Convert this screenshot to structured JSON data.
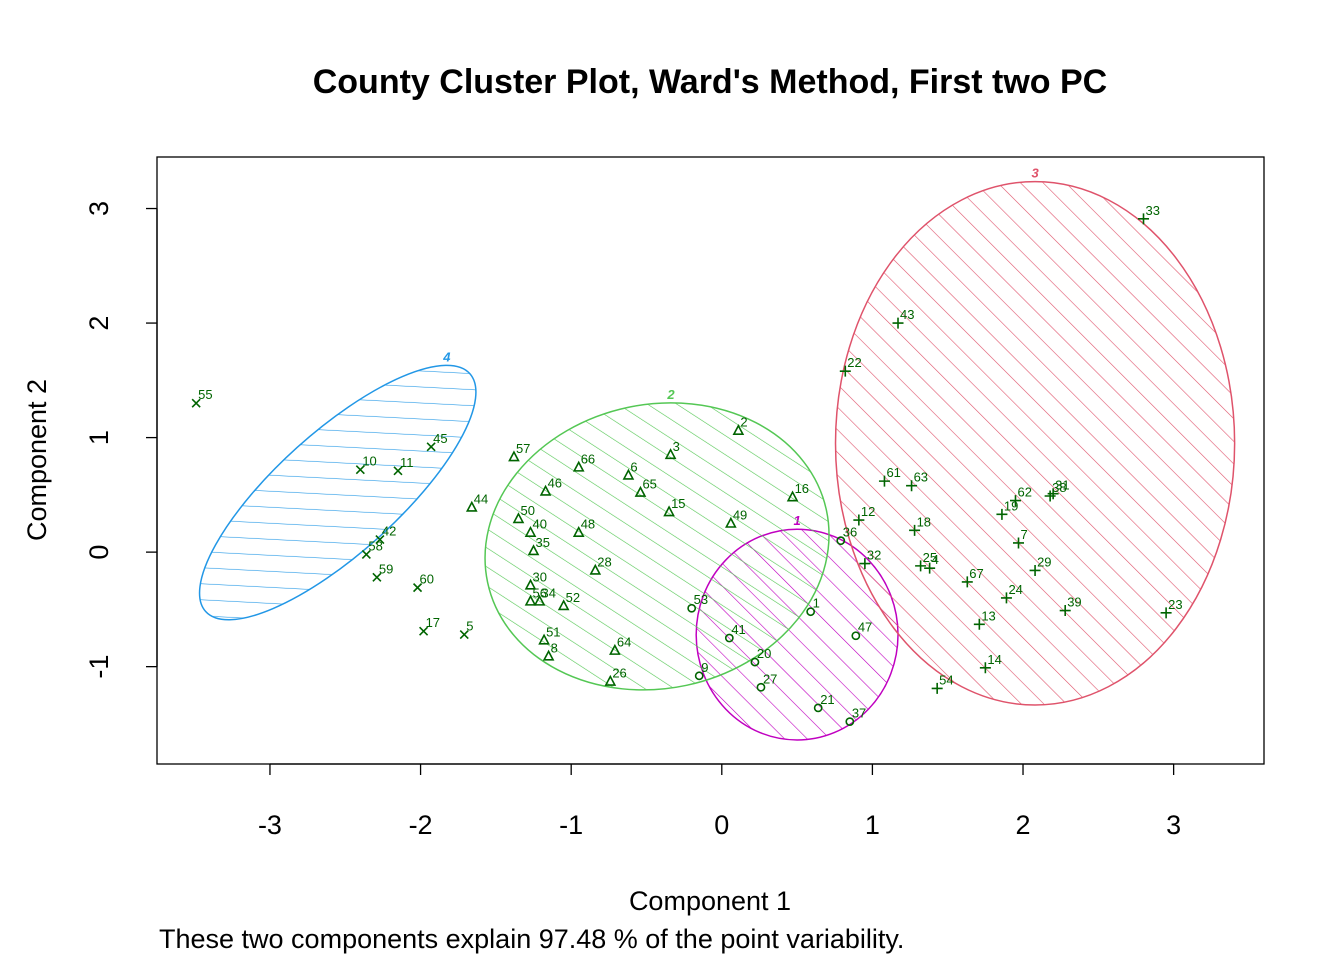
{
  "chart_data": {
    "type": "scatter",
    "title": "County Cluster Plot, Ward's Method, First two PC",
    "xlabel": "Component 1",
    "ylabel": "Component 2",
    "caption": "These two components explain 97.48 % of the point variability.",
    "xlim": [
      -3.75,
      3.6
    ],
    "ylim": [
      -1.85,
      3.45
    ],
    "xticks": [
      -3,
      -2,
      -1,
      0,
      1,
      2,
      3
    ],
    "yticks": [
      -1,
      0,
      1,
      2,
      3
    ],
    "grid": false,
    "point_color": "#006400",
    "clusters": [
      {
        "id": "1",
        "color": "#C000C0",
        "marker": "circle",
        "ellipse": {
          "cx": 0.5,
          "cy": -0.72,
          "rx": 0.67,
          "ry": 0.92,
          "angle": 0
        },
        "points": [
          {
            "label": "1",
            "x": 0.59,
            "y": -0.52
          },
          {
            "label": "9",
            "x": -0.15,
            "y": -1.08
          },
          {
            "label": "20",
            "x": 0.22,
            "y": -0.96
          },
          {
            "label": "21",
            "x": 0.64,
            "y": -1.36
          },
          {
            "label": "27",
            "x": 0.26,
            "y": -1.18
          },
          {
            "label": "36",
            "x": 0.79,
            "y": 0.1
          },
          {
            "label": "37",
            "x": 0.85,
            "y": -1.48
          },
          {
            "label": "41",
            "x": 0.05,
            "y": -0.75
          },
          {
            "label": "47",
            "x": 0.89,
            "y": -0.73
          },
          {
            "label": "53",
            "x": -0.2,
            "y": -0.49
          }
        ]
      },
      {
        "id": "2",
        "color": "#54C754",
        "marker": "triangle",
        "ellipse": {
          "cx": -0.43,
          "cy": 0.05,
          "rx": 1.15,
          "ry": 1.24,
          "angle": -12
        },
        "points": [
          {
            "label": "2",
            "x": 0.11,
            "y": 1.06
          },
          {
            "label": "3",
            "x": -0.34,
            "y": 0.85
          },
          {
            "label": "6",
            "x": -0.62,
            "y": 0.67
          },
          {
            "label": "8",
            "x": -1.15,
            "y": -0.91
          },
          {
            "label": "15",
            "x": -0.35,
            "y": 0.35
          },
          {
            "label": "16",
            "x": 0.47,
            "y": 0.48
          },
          {
            "label": "26",
            "x": -0.74,
            "y": -1.13
          },
          {
            "label": "28",
            "x": -0.84,
            "y": -0.16
          },
          {
            "label": "30",
            "x": -1.27,
            "y": -0.29
          },
          {
            "label": "34",
            "x": -1.21,
            "y": -0.43
          },
          {
            "label": "35",
            "x": -1.25,
            "y": 0.01
          },
          {
            "label": "40",
            "x": -1.27,
            "y": 0.17
          },
          {
            "label": "44",
            "x": -1.66,
            "y": 0.39
          },
          {
            "label": "46",
            "x": -1.17,
            "y": 0.53
          },
          {
            "label": "48",
            "x": -0.95,
            "y": 0.17
          },
          {
            "label": "49",
            "x": 0.06,
            "y": 0.25
          },
          {
            "label": "50",
            "x": -1.35,
            "y": 0.29
          },
          {
            "label": "51",
            "x": -1.18,
            "y": -0.77
          },
          {
            "label": "52",
            "x": -1.05,
            "y": -0.47
          },
          {
            "label": "56",
            "x": -1.27,
            "y": -0.43
          },
          {
            "label": "57",
            "x": -1.38,
            "y": 0.83
          },
          {
            "label": "64",
            "x": -0.71,
            "y": -0.86
          },
          {
            "label": "65",
            "x": -0.54,
            "y": 0.52
          },
          {
            "label": "66",
            "x": -0.95,
            "y": 0.74
          }
        ]
      },
      {
        "id": "3",
        "color": "#DF536B",
        "marker": "plus",
        "ellipse": {
          "cx": 2.08,
          "cy": 0.95,
          "rx": 1.325,
          "ry": 2.285,
          "angle": 0
        },
        "points": [
          {
            "label": "4",
            "x": 1.38,
            "y": -0.14
          },
          {
            "label": "7",
            "x": 1.97,
            "y": 0.08
          },
          {
            "label": "12",
            "x": 0.91,
            "y": 0.28
          },
          {
            "label": "13",
            "x": 1.71,
            "y": -0.63
          },
          {
            "label": "14",
            "x": 1.75,
            "y": -1.01
          },
          {
            "label": "18",
            "x": 1.28,
            "y": 0.19
          },
          {
            "label": "19",
            "x": 1.86,
            "y": 0.33
          },
          {
            "label": "22",
            "x": 0.82,
            "y": 1.58
          },
          {
            "label": "23",
            "x": 2.95,
            "y": -0.53
          },
          {
            "label": "24",
            "x": 1.89,
            "y": -0.4
          },
          {
            "label": "25",
            "x": 1.32,
            "y": -0.12
          },
          {
            "label": "29",
            "x": 2.08,
            "y": -0.16
          },
          {
            "label": "31",
            "x": 2.2,
            "y": 0.51
          },
          {
            "label": "32",
            "x": 0.95,
            "y": -0.1
          },
          {
            "label": "33",
            "x": 2.8,
            "y": 2.91
          },
          {
            "label": "38",
            "x": 2.18,
            "y": 0.49
          },
          {
            "label": "39",
            "x": 2.28,
            "y": -0.51
          },
          {
            "label": "43",
            "x": 1.17,
            "y": 2.0
          },
          {
            "label": "54",
            "x": 1.43,
            "y": -1.19
          },
          {
            "label": "61",
            "x": 1.08,
            "y": 0.62
          },
          {
            "label": "62",
            "x": 1.95,
            "y": 0.45
          },
          {
            "label": "63",
            "x": 1.26,
            "y": 0.58
          },
          {
            "label": "67",
            "x": 1.63,
            "y": -0.26
          }
        ]
      },
      {
        "id": "4",
        "color": "#2297E6",
        "marker": "x",
        "ellipse": {
          "cx": -2.55,
          "cy": 0.52,
          "rx": 1.18,
          "ry": 0.53,
          "angle": -42
        },
        "points": [
          {
            "label": "5",
            "x": -1.71,
            "y": -0.72
          },
          {
            "label": "10",
            "x": -2.4,
            "y": 0.72
          },
          {
            "label": "11",
            "x": -2.15,
            "y": 0.71
          },
          {
            "label": "17",
            "x": -1.98,
            "y": -0.69
          },
          {
            "label": "42",
            "x": -2.27,
            "y": 0.11
          },
          {
            "label": "45",
            "x": -1.93,
            "y": 0.92
          },
          {
            "label": "55",
            "x": -3.49,
            "y": 1.3
          },
          {
            "label": "58",
            "x": -2.36,
            "y": -0.02
          },
          {
            "label": "59",
            "x": -2.29,
            "y": -0.22
          },
          {
            "label": "60",
            "x": -2.02,
            "y": -0.31
          }
        ]
      }
    ]
  }
}
